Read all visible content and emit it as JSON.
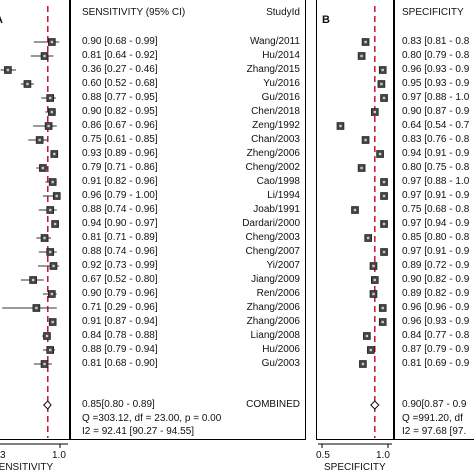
{
  "chart_data": [
    {
      "type": "forest",
      "panel_label": "A",
      "column_header": "SENSITIVITY (95% CI)",
      "study_header": "StudyId",
      "xlabel": "SENSITIVITY",
      "x_ticks": [
        "3",
        "1.0"
      ],
      "xlim": [
        0.3,
        1.0
      ],
      "reference_line": 0.85,
      "studies": [
        {
          "study": "Wang/2011",
          "est": 0.9,
          "lo": 0.68,
          "hi": 0.99,
          "label": "0.90 [0.68 - 0.99]"
        },
        {
          "study": "Hu/2014",
          "est": 0.81,
          "lo": 0.64,
          "hi": 0.92,
          "label": "0.81 [0.64 - 0.92]"
        },
        {
          "study": "Zhang/2015",
          "est": 0.36,
          "lo": 0.27,
          "hi": 0.46,
          "label": "0.36 [0.27 - 0.46]"
        },
        {
          "study": "Yu/2016",
          "est": 0.6,
          "lo": 0.52,
          "hi": 0.68,
          "label": "0.60 [0.52 - 0.68]"
        },
        {
          "study": "Gu/2016",
          "est": 0.88,
          "lo": 0.77,
          "hi": 0.95,
          "label": "0.88 [0.77 - 0.95]"
        },
        {
          "study": "Chen/2018",
          "est": 0.9,
          "lo": 0.82,
          "hi": 0.95,
          "label": "0.90 [0.82 - 0.95]"
        },
        {
          "study": "Zeng/1992",
          "est": 0.86,
          "lo": 0.67,
          "hi": 0.96,
          "label": "0.86 [0.67 - 0.96]"
        },
        {
          "study": "Chan/2003",
          "est": 0.75,
          "lo": 0.61,
          "hi": 0.85,
          "label": "0.75 [0.61 - 0.85]"
        },
        {
          "study": "Zheng/2006",
          "est": 0.93,
          "lo": 0.89,
          "hi": 0.96,
          "label": "0.93 [0.89 - 0.96]"
        },
        {
          "study": "Cheng/2002",
          "est": 0.79,
          "lo": 0.71,
          "hi": 0.86,
          "label": "0.79 [0.71 - 0.86]"
        },
        {
          "study": "Cao/1998",
          "est": 0.91,
          "lo": 0.82,
          "hi": 0.96,
          "label": "0.91 [0.82 - 0.96]"
        },
        {
          "study": "Li/1994",
          "est": 0.96,
          "lo": 0.79,
          "hi": 1.0,
          "label": "0.96 [0.79 - 1.00]"
        },
        {
          "study": "Joab/1991",
          "est": 0.88,
          "lo": 0.74,
          "hi": 0.96,
          "label": "0.88 [0.74 - 0.96]"
        },
        {
          "study": "Dardari/2000",
          "est": 0.94,
          "lo": 0.9,
          "hi": 0.97,
          "label": "0.94 [0.90 - 0.97]"
        },
        {
          "study": "Cheng/2003",
          "est": 0.81,
          "lo": 0.71,
          "hi": 0.89,
          "label": "0.81 [0.71 - 0.89]"
        },
        {
          "study": "Cheng/2007",
          "est": 0.88,
          "lo": 0.74,
          "hi": 0.96,
          "label": "0.88 [0.74 - 0.96]"
        },
        {
          "study": "Yi/2007",
          "est": 0.92,
          "lo": 0.73,
          "hi": 0.99,
          "label": "0.92 [0.73 - 0.99]"
        },
        {
          "study": "Jiang/2009",
          "est": 0.67,
          "lo": 0.52,
          "hi": 0.8,
          "label": "0.67 [0.52 - 0.80]"
        },
        {
          "study": "Ren/2006",
          "est": 0.9,
          "lo": 0.79,
          "hi": 0.96,
          "label": "0.90 [0.79 - 0.96]"
        },
        {
          "study": "Zhang/2006",
          "est": 0.71,
          "lo": 0.29,
          "hi": 0.96,
          "label": "0.71 [0.29 - 0.96]"
        },
        {
          "study": "Zhang/2006",
          "est": 0.91,
          "lo": 0.87,
          "hi": 0.94,
          "label": "0.91 [0.87 - 0.94]"
        },
        {
          "study": "Liang/2008",
          "est": 0.84,
          "lo": 0.78,
          "hi": 0.88,
          "label": "0.84 [0.78 - 0.88]"
        },
        {
          "study": "Hu/2006",
          "est": 0.88,
          "lo": 0.79,
          "hi": 0.94,
          "label": "0.88 [0.79 - 0.94]"
        },
        {
          "study": "Gu/2003",
          "est": 0.81,
          "lo": 0.68,
          "hi": 0.9,
          "label": "0.81 [0.68 - 0.90]"
        }
      ],
      "combined": {
        "study": "COMBINED",
        "est": 0.85,
        "lo": 0.8,
        "hi": 0.89,
        "label": "0.85[0.80 - 0.89]"
      },
      "stat_q": "Q =303.12, df = 23.00, p =  0.00",
      "stat_i2": "I2 = 92.41 [90.27 - 94.55]"
    },
    {
      "type": "forest",
      "panel_label": "B",
      "column_header": "SPECIFICITY",
      "xlabel": "SPECIFICITY",
      "x_ticks": [
        "0.5",
        "1.0"
      ],
      "xlim": [
        0.5,
        1.0
      ],
      "reference_line": 0.9,
      "studies": [
        {
          "est": 0.83,
          "label": "0.83 [0.81 - 0.8"
        },
        {
          "est": 0.8,
          "label": "0.80 [0.79 - 0.8"
        },
        {
          "est": 0.96,
          "label": "0.96 [0.93 - 0.9"
        },
        {
          "est": 0.95,
          "label": "0.95 [0.93 - 0.9"
        },
        {
          "est": 0.97,
          "label": "0.97 [0.88 - 1.0"
        },
        {
          "est": 0.9,
          "label": "0.90 [0.87 - 0.9"
        },
        {
          "est": 0.64,
          "label": "0.64 [0.54 - 0.7"
        },
        {
          "est": 0.83,
          "label": "0.83 [0.76 - 0.8"
        },
        {
          "est": 0.94,
          "label": "0.94 [0.91 - 0.9"
        },
        {
          "est": 0.8,
          "label": "0.80 [0.75 - 0.8"
        },
        {
          "est": 0.97,
          "label": "0.97 [0.88 - 1.0"
        },
        {
          "est": 0.97,
          "label": "0.97 [0.91 - 0.9"
        },
        {
          "est": 0.75,
          "label": "0.75 [0.68 - 0.8"
        },
        {
          "est": 0.97,
          "label": "0.97 [0.94 - 0.9"
        },
        {
          "est": 0.85,
          "label": "0.85 [0.80 - 0.8"
        },
        {
          "est": 0.97,
          "label": "0.97 [0.91 - 0.9"
        },
        {
          "est": 0.89,
          "label": "0.89 [0.72 - 0.9"
        },
        {
          "est": 0.9,
          "label": "0.90 [0.82 - 0.9"
        },
        {
          "est": 0.89,
          "label": "0.89 [0.82 - 0.9"
        },
        {
          "est": 0.96,
          "label": "0.96 [0.96 - 0.9"
        },
        {
          "est": 0.96,
          "label": "0.96 [0.93 - 0.9"
        },
        {
          "est": 0.84,
          "label": "0.84 [0.77 - 0.8"
        },
        {
          "est": 0.87,
          "label": "0.87 [0.79 - 0.9"
        },
        {
          "est": 0.81,
          "label": "0.81 [0.69 - 0.9"
        }
      ],
      "combined": {
        "est": 0.9,
        "label": "0.90[0.87 - 0.9"
      },
      "stat_q": "Q =991.20, df",
      "stat_i2": "I2 = 97.68 [97."
    }
  ]
}
